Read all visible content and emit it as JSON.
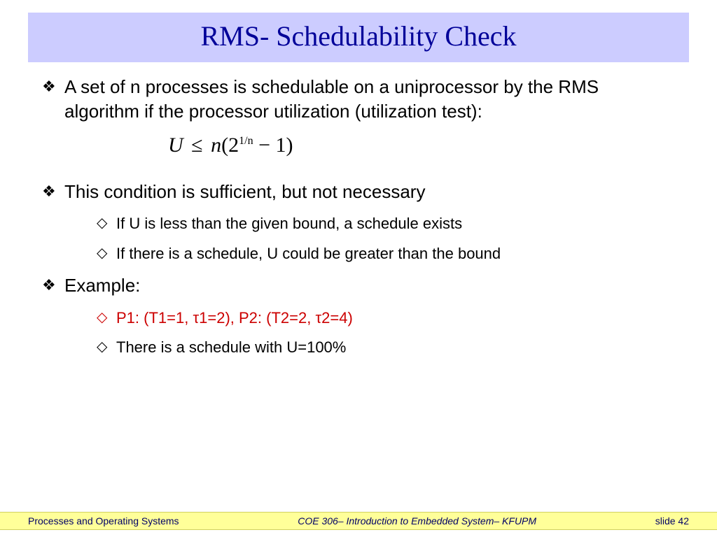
{
  "title": "RMS- Schedulability Check",
  "title_bg": "#ccccff",
  "title_color": "#000099",
  "bullets": {
    "b1": "A set of n processes is schedulable on a uniprocessor by the RMS algorithm if the processor utilization (utilization test):",
    "formula_U": "U",
    "formula_leq": "≤",
    "formula_n": "n",
    "formula_open": "(2",
    "formula_exp": "1/n",
    "formula_close": " − 1)",
    "b2": "This condition is sufficient, but not necessary",
    "b2a": "If U is less than the given bound, a schedule exists",
    "b2b": "If there is a schedule, U could be greater than the bound",
    "b3": "Example:",
    "b3a": "P1: (T1=1, τ1=2), P2: (T2=2, τ2=4)",
    "b3b": "There is a schedule with U=100%"
  },
  "colors": {
    "body_text": "#000000",
    "red_text": "#cc0000",
    "footer_bg": "#ffff99",
    "footer_text": "#000066"
  },
  "footer": {
    "left": "Processes and Operating Systems",
    "center": "COE 306– Introduction to Embedded System– KFUPM",
    "right": "slide 42"
  },
  "glyphs": {
    "diamond_filled": "❖",
    "diamond_open": "◇"
  }
}
